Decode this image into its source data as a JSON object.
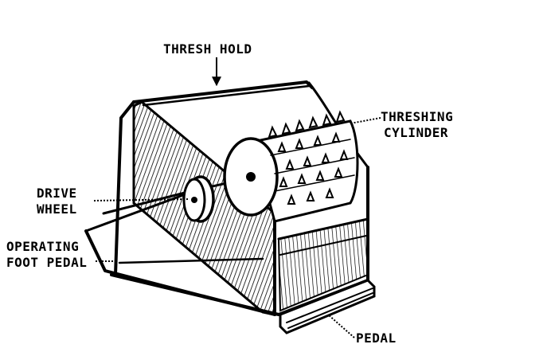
{
  "labels": {
    "thresh_hold": "THRESH HOLD",
    "threshing_cylinder_1": "THRESHING",
    "threshing_cylinder_2": "CYLINDER",
    "drive_wheel_1": "DRIVE",
    "drive_wheel_2": "WHEEL",
    "foot_pedal_1": "OPERATING",
    "foot_pedal_2": "FOOT PEDAL",
    "pedal": "PEDAL"
  }
}
